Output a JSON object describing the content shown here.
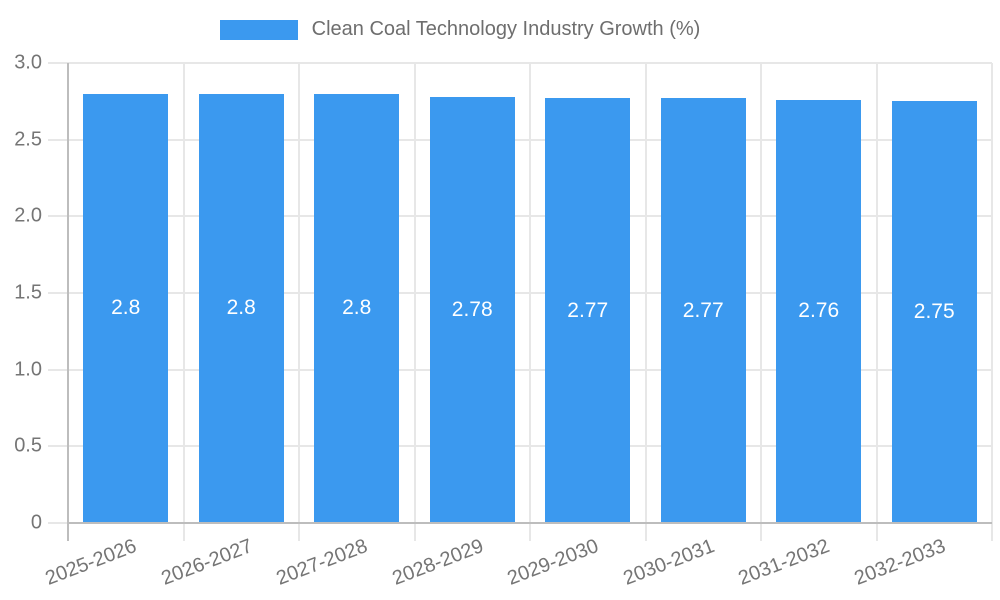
{
  "legend": {
    "label": "Clean Coal Technology Industry Growth (%)"
  },
  "chart_data": {
    "type": "bar",
    "title": "Clean Coal Technology Industry Growth (%)",
    "categories": [
      "2025-2026",
      "2026-2027",
      "2027-2028",
      "2028-2029",
      "2029-2030",
      "2030-2031",
      "2031-2032",
      "2032-2033"
    ],
    "values": [
      2.8,
      2.8,
      2.8,
      2.78,
      2.77,
      2.77,
      2.76,
      2.75
    ],
    "bar_labels": [
      "2.8",
      "2.8",
      "2.8",
      "2.78",
      "2.77",
      "2.77",
      "2.76",
      "2.75"
    ],
    "xlabel": "",
    "ylabel": "",
    "ylim": [
      0,
      3
    ],
    "yticks": [
      0,
      0.5,
      1,
      1.5,
      2,
      2.5,
      3
    ],
    "ytick_labels": [
      "0",
      "0.5",
      "1.0",
      "1.5",
      "2.0",
      "2.5",
      "3.0"
    ],
    "grid": true,
    "legend_position": "top-center",
    "x_tick_label_rotation_deg": -21,
    "colors": {
      "bar": "#3B99EF",
      "bar_label": "#FFFFFF",
      "grid": "#E7E7E7",
      "axis": "#BDBDBD",
      "tick_text": "#757575",
      "legend_text": "#6E6E6E"
    }
  }
}
